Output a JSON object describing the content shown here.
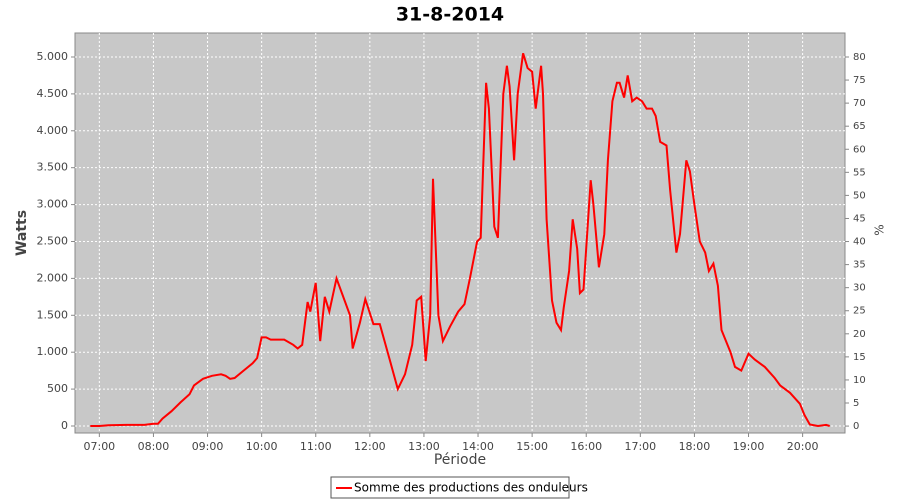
{
  "chart_data": {
    "type": "line",
    "title": "31-8-2014",
    "xlabel": "Période",
    "ylabel": "Watts",
    "y2label": "%",
    "x": [
      "06:50",
      "07:00",
      "07:10",
      "07:30",
      "07:50",
      "08:00",
      "08:05",
      "08:10",
      "08:20",
      "08:30",
      "08:40",
      "08:45",
      "08:55",
      "09:05",
      "09:15",
      "09:20",
      "09:25",
      "09:30",
      "09:40",
      "09:50",
      "09:55",
      "10:00",
      "10:05",
      "10:10",
      "10:25",
      "10:35",
      "10:40",
      "10:45",
      "10:51",
      "10:54",
      "11:00",
      "11:05",
      "11:10",
      "11:15",
      "11:23",
      "11:32",
      "11:38",
      "11:41",
      "11:49",
      "11:55",
      "12:04",
      "12:11",
      "12:22",
      "12:31",
      "12:39",
      "12:47",
      "12:52",
      "12:57",
      "13:02",
      "13:07",
      "13:10",
      "13:16",
      "13:21",
      "13:29",
      "13:38",
      "13:45",
      "13:51",
      "13:59",
      "14:03",
      "14:09",
      "14:12",
      "14:18",
      "14:22",
      "14:28",
      "14:32",
      "14:35",
      "14:40",
      "14:44",
      "14:50",
      "14:55",
      "15:00",
      "15:04",
      "15:10",
      "15:12",
      "15:16",
      "15:22",
      "15:27",
      "15:32",
      "15:35",
      "15:41",
      "15:45",
      "15:50",
      "15:53",
      "15:57",
      "16:05",
      "16:08",
      "16:14",
      "16:20",
      "16:24",
      "16:29",
      "16:34",
      "16:37",
      "16:42",
      "16:46",
      "16:51",
      "16:56",
      "17:02",
      "17:07",
      "17:13",
      "17:17",
      "17:22",
      "17:29",
      "17:33",
      "17:40",
      "17:44",
      "17:51",
      "17:55",
      "18:00",
      "18:06",
      "18:12",
      "18:16",
      "18:21",
      "18:26",
      "18:30",
      "18:40",
      "18:45",
      "18:52",
      "19:00",
      "19:07",
      "19:18",
      "19:29",
      "19:35",
      "19:46",
      "19:57",
      "20:02",
      "20:08",
      "20:17",
      "20:26",
      "20:30"
    ],
    "series": [
      {
        "name": "Somme des productions des onduleurs",
        "color": "#ff0000",
        "values": [
          0,
          0,
          10,
          15,
          15,
          30,
          30,
          100,
          200,
          320,
          430,
          550,
          640,
          680,
          700,
          680,
          640,
          650,
          750,
          850,
          920,
          1200,
          1200,
          1170,
          1170,
          1100,
          1050,
          1100,
          1680,
          1550,
          1940,
          1150,
          1750,
          1550,
          2000,
          1700,
          1500,
          1050,
          1400,
          1720,
          1380,
          1380,
          900,
          500,
          700,
          1100,
          1700,
          1750,
          880,
          1500,
          3350,
          1500,
          1150,
          1350,
          1550,
          1650,
          2000,
          2500,
          2550,
          4650,
          4300,
          2700,
          2550,
          4500,
          4880,
          4600,
          3600,
          4500,
          5050,
          4850,
          4800,
          4300,
          4880,
          4500,
          2800,
          1700,
          1400,
          1300,
          1600,
          2100,
          2800,
          2400,
          1800,
          1850,
          3330,
          3000,
          2150,
          2600,
          3600,
          4400,
          4650,
          4650,
          4450,
          4750,
          4400,
          4450,
          4400,
          4300,
          4300,
          4200,
          3850,
          3800,
          3200,
          2350,
          2600,
          3600,
          3450,
          3000,
          2500,
          2350,
          2100,
          2200,
          1900,
          1300,
          1000,
          800,
          750,
          980,
          900,
          800,
          650,
          550,
          450,
          300,
          150,
          20,
          0,
          15,
          0
        ]
      }
    ],
    "xlim": [
      "06:33",
      "20:47"
    ],
    "xticks": [
      "07:00",
      "08:00",
      "09:00",
      "10:00",
      "11:00",
      "12:00",
      "13:00",
      "14:00",
      "15:00",
      "16:00",
      "17:00",
      "18:00",
      "19:00",
      "20:00"
    ],
    "ylim": [
      -95,
      5325
    ],
    "yticks": [
      0,
      500,
      {
        "value": 1000,
        "label": "1.000"
      },
      {
        "value": 1500,
        "label": "1.500"
      },
      {
        "value": 2000,
        "label": "2.000"
      },
      {
        "value": 2500,
        "label": "2.500"
      },
      {
        "value": 3000,
        "label": "3.000"
      },
      {
        "value": 3500,
        "label": "3.500"
      },
      {
        "value": 4000,
        "label": "4.000"
      },
      {
        "value": 4500,
        "label": "4.500"
      },
      {
        "value": 5000,
        "label": "5.000"
      }
    ],
    "y2lim": [
      -1.5,
      85.2
    ],
    "y2ticks": [
      0,
      5,
      10,
      15,
      20,
      25,
      30,
      35,
      40,
      45,
      50,
      55,
      60,
      65,
      70,
      75,
      80
    ],
    "grid": true
  }
}
